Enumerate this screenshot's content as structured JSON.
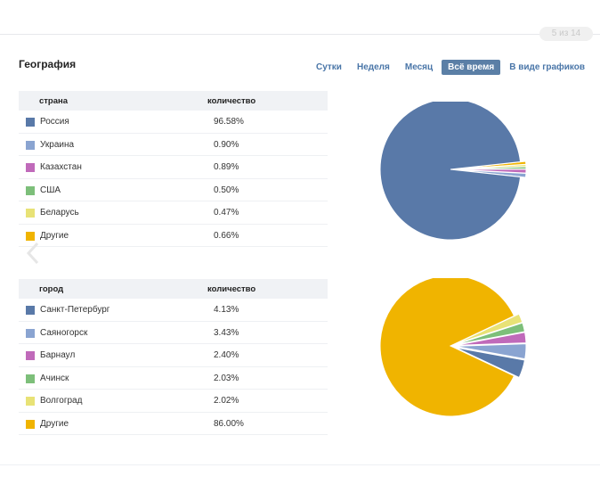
{
  "pager": {
    "counter": "5 из 14"
  },
  "header": {
    "title": "География",
    "tabs": [
      {
        "label": "Сутки",
        "active": false
      },
      {
        "label": "Неделя",
        "active": false
      },
      {
        "label": "Месяц",
        "active": false
      },
      {
        "label": "Всё время",
        "active": true
      },
      {
        "label": "В виде графиков",
        "active": false
      }
    ]
  },
  "countries": {
    "col_name": "страна",
    "col_count": "количество",
    "rows": [
      {
        "name": "Россия",
        "value": "96.58%",
        "color": "#5979a8"
      },
      {
        "name": "Украина",
        "value": "0.90%",
        "color": "#8aa4d1"
      },
      {
        "name": "Казахстан",
        "value": "0.89%",
        "color": "#c06aba"
      },
      {
        "name": "США",
        "value": "0.50%",
        "color": "#7dbf7a"
      },
      {
        "name": "Беларусь",
        "value": "0.47%",
        "color": "#e8e276"
      },
      {
        "name": "Другие",
        "value": "0.66%",
        "color": "#f0b400"
      }
    ]
  },
  "cities": {
    "col_name": "город",
    "col_count": "количество",
    "rows": [
      {
        "name": "Санкт-Петербург",
        "value": "4.13%",
        "color": "#5979a8"
      },
      {
        "name": "Саяногорск",
        "value": "3.43%",
        "color": "#8aa4d1"
      },
      {
        "name": "Барнаул",
        "value": "2.40%",
        "color": "#c06aba"
      },
      {
        "name": "Ачинск",
        "value": "2.03%",
        "color": "#7dbf7a"
      },
      {
        "name": "Волгоград",
        "value": "2.02%",
        "color": "#e8e276"
      },
      {
        "name": "Другие",
        "value": "86.00%",
        "color": "#f0b400"
      }
    ]
  },
  "chart_data": [
    {
      "type": "pie",
      "categories": [
        "Россия",
        "Украина",
        "Казахстан",
        "США",
        "Беларусь",
        "Другие"
      ],
      "values": [
        96.58,
        0.9,
        0.89,
        0.5,
        0.47,
        0.66
      ],
      "colors": [
        "#5979a8",
        "#8aa4d1",
        "#c06aba",
        "#7dbf7a",
        "#e8e276",
        "#f0b400"
      ],
      "exploded": [
        false,
        true,
        true,
        true,
        true,
        true
      ]
    },
    {
      "type": "pie",
      "categories": [
        "Санкт-Петербург",
        "Саяногорск",
        "Барнаул",
        "Ачинск",
        "Волгоград",
        "Другие"
      ],
      "values": [
        4.13,
        3.43,
        2.4,
        2.03,
        2.02,
        86.0
      ],
      "colors": [
        "#5979a8",
        "#8aa4d1",
        "#c06aba",
        "#7dbf7a",
        "#e8e276",
        "#f0b400"
      ],
      "exploded": [
        true,
        true,
        true,
        true,
        true,
        false
      ]
    }
  ]
}
